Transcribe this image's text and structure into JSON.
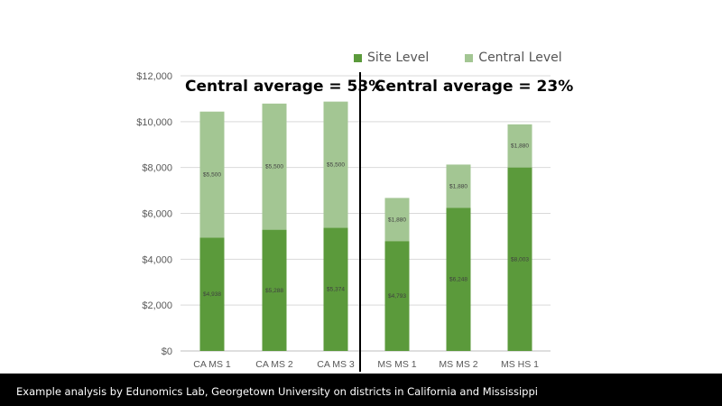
{
  "chart_data": {
    "type": "bar",
    "stacked": true,
    "categories": [
      "CA MS 1",
      "CA MS 2",
      "CA MS 3",
      "MS MS 1",
      "MS MS 2",
      "MS HS 1"
    ],
    "series": [
      {
        "name": "Site Level",
        "color": "#5b9a3b",
        "values": [
          4938,
          5288,
          5374,
          4793,
          6248,
          8003
        ],
        "labels": [
          "$4,938",
          "$5,288",
          "$5,374",
          "$4,793",
          "$6,248",
          "$8,003"
        ]
      },
      {
        "name": "Central Level",
        "color": "#a3c693",
        "values": [
          5500,
          5500,
          5500,
          1880,
          1880,
          1880
        ],
        "labels": [
          "$5,500",
          "$5,500",
          "$5,500",
          "$1,880",
          "$1,880",
          "$1,880"
        ]
      }
    ],
    "ylim": [
      0,
      12000
    ],
    "yticks": [
      0,
      2000,
      4000,
      6000,
      8000,
      10000,
      12000
    ],
    "ytick_labels": [
      "$0",
      "$2,000",
      "$4,000",
      "$6,000",
      "$8,000",
      "$10,000",
      "$12,000"
    ],
    "grid": true,
    "legend_position": "top-right",
    "annotations": [
      "Central average = 53%",
      "Central average = 23%"
    ]
  },
  "footer": {
    "text": "Example analysis by Edunomics Lab, Georgetown University on districts in California and Mississippi"
  }
}
